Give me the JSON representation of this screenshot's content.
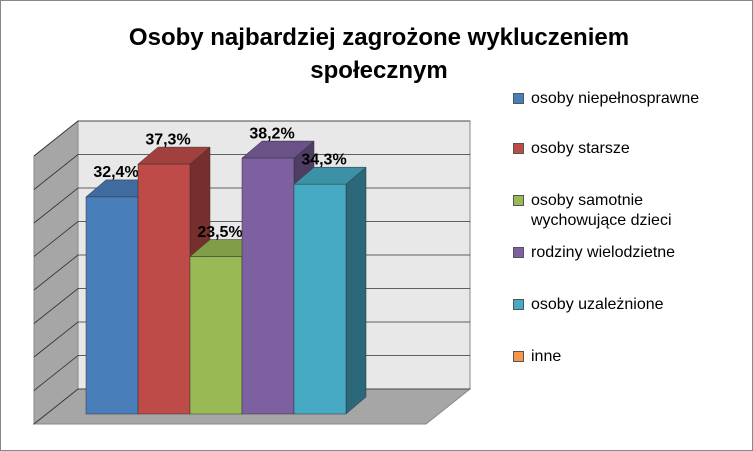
{
  "chart_data": {
    "type": "bar3d",
    "title": "Osoby najbardziej zagrożone wykluczeniem społecznym",
    "series": [
      {
        "name": "osoby niepełnosprawne",
        "color": "#4a7ebb",
        "values": [
          32.4
        ],
        "value_labels": [
          "32,4%"
        ]
      },
      {
        "name": "osoby starsze",
        "color": "#be4b48",
        "values": [
          37.3
        ],
        "value_labels": [
          "37,3%"
        ]
      },
      {
        "name": "osoby samotnie wychowujące dzieci",
        "color": "#98b954",
        "values": [
          23.5
        ],
        "value_labels": [
          "23,5%"
        ]
      },
      {
        "name": "rodziny wielodzietne",
        "color": "#7d60a0",
        "values": [
          38.2
        ],
        "value_labels": [
          "38,2%"
        ]
      },
      {
        "name": "osoby uzależnione",
        "color": "#46aac5",
        "values": [
          34.3
        ],
        "value_labels": [
          "34,3%"
        ]
      },
      {
        "name": "inne",
        "color": "#f79646",
        "values": [
          null
        ]
      }
    ],
    "ylim": [
      0,
      40
    ],
    "yticks": [
      0,
      5,
      10,
      15,
      20,
      25,
      30,
      35,
      40
    ],
    "grid": true
  }
}
